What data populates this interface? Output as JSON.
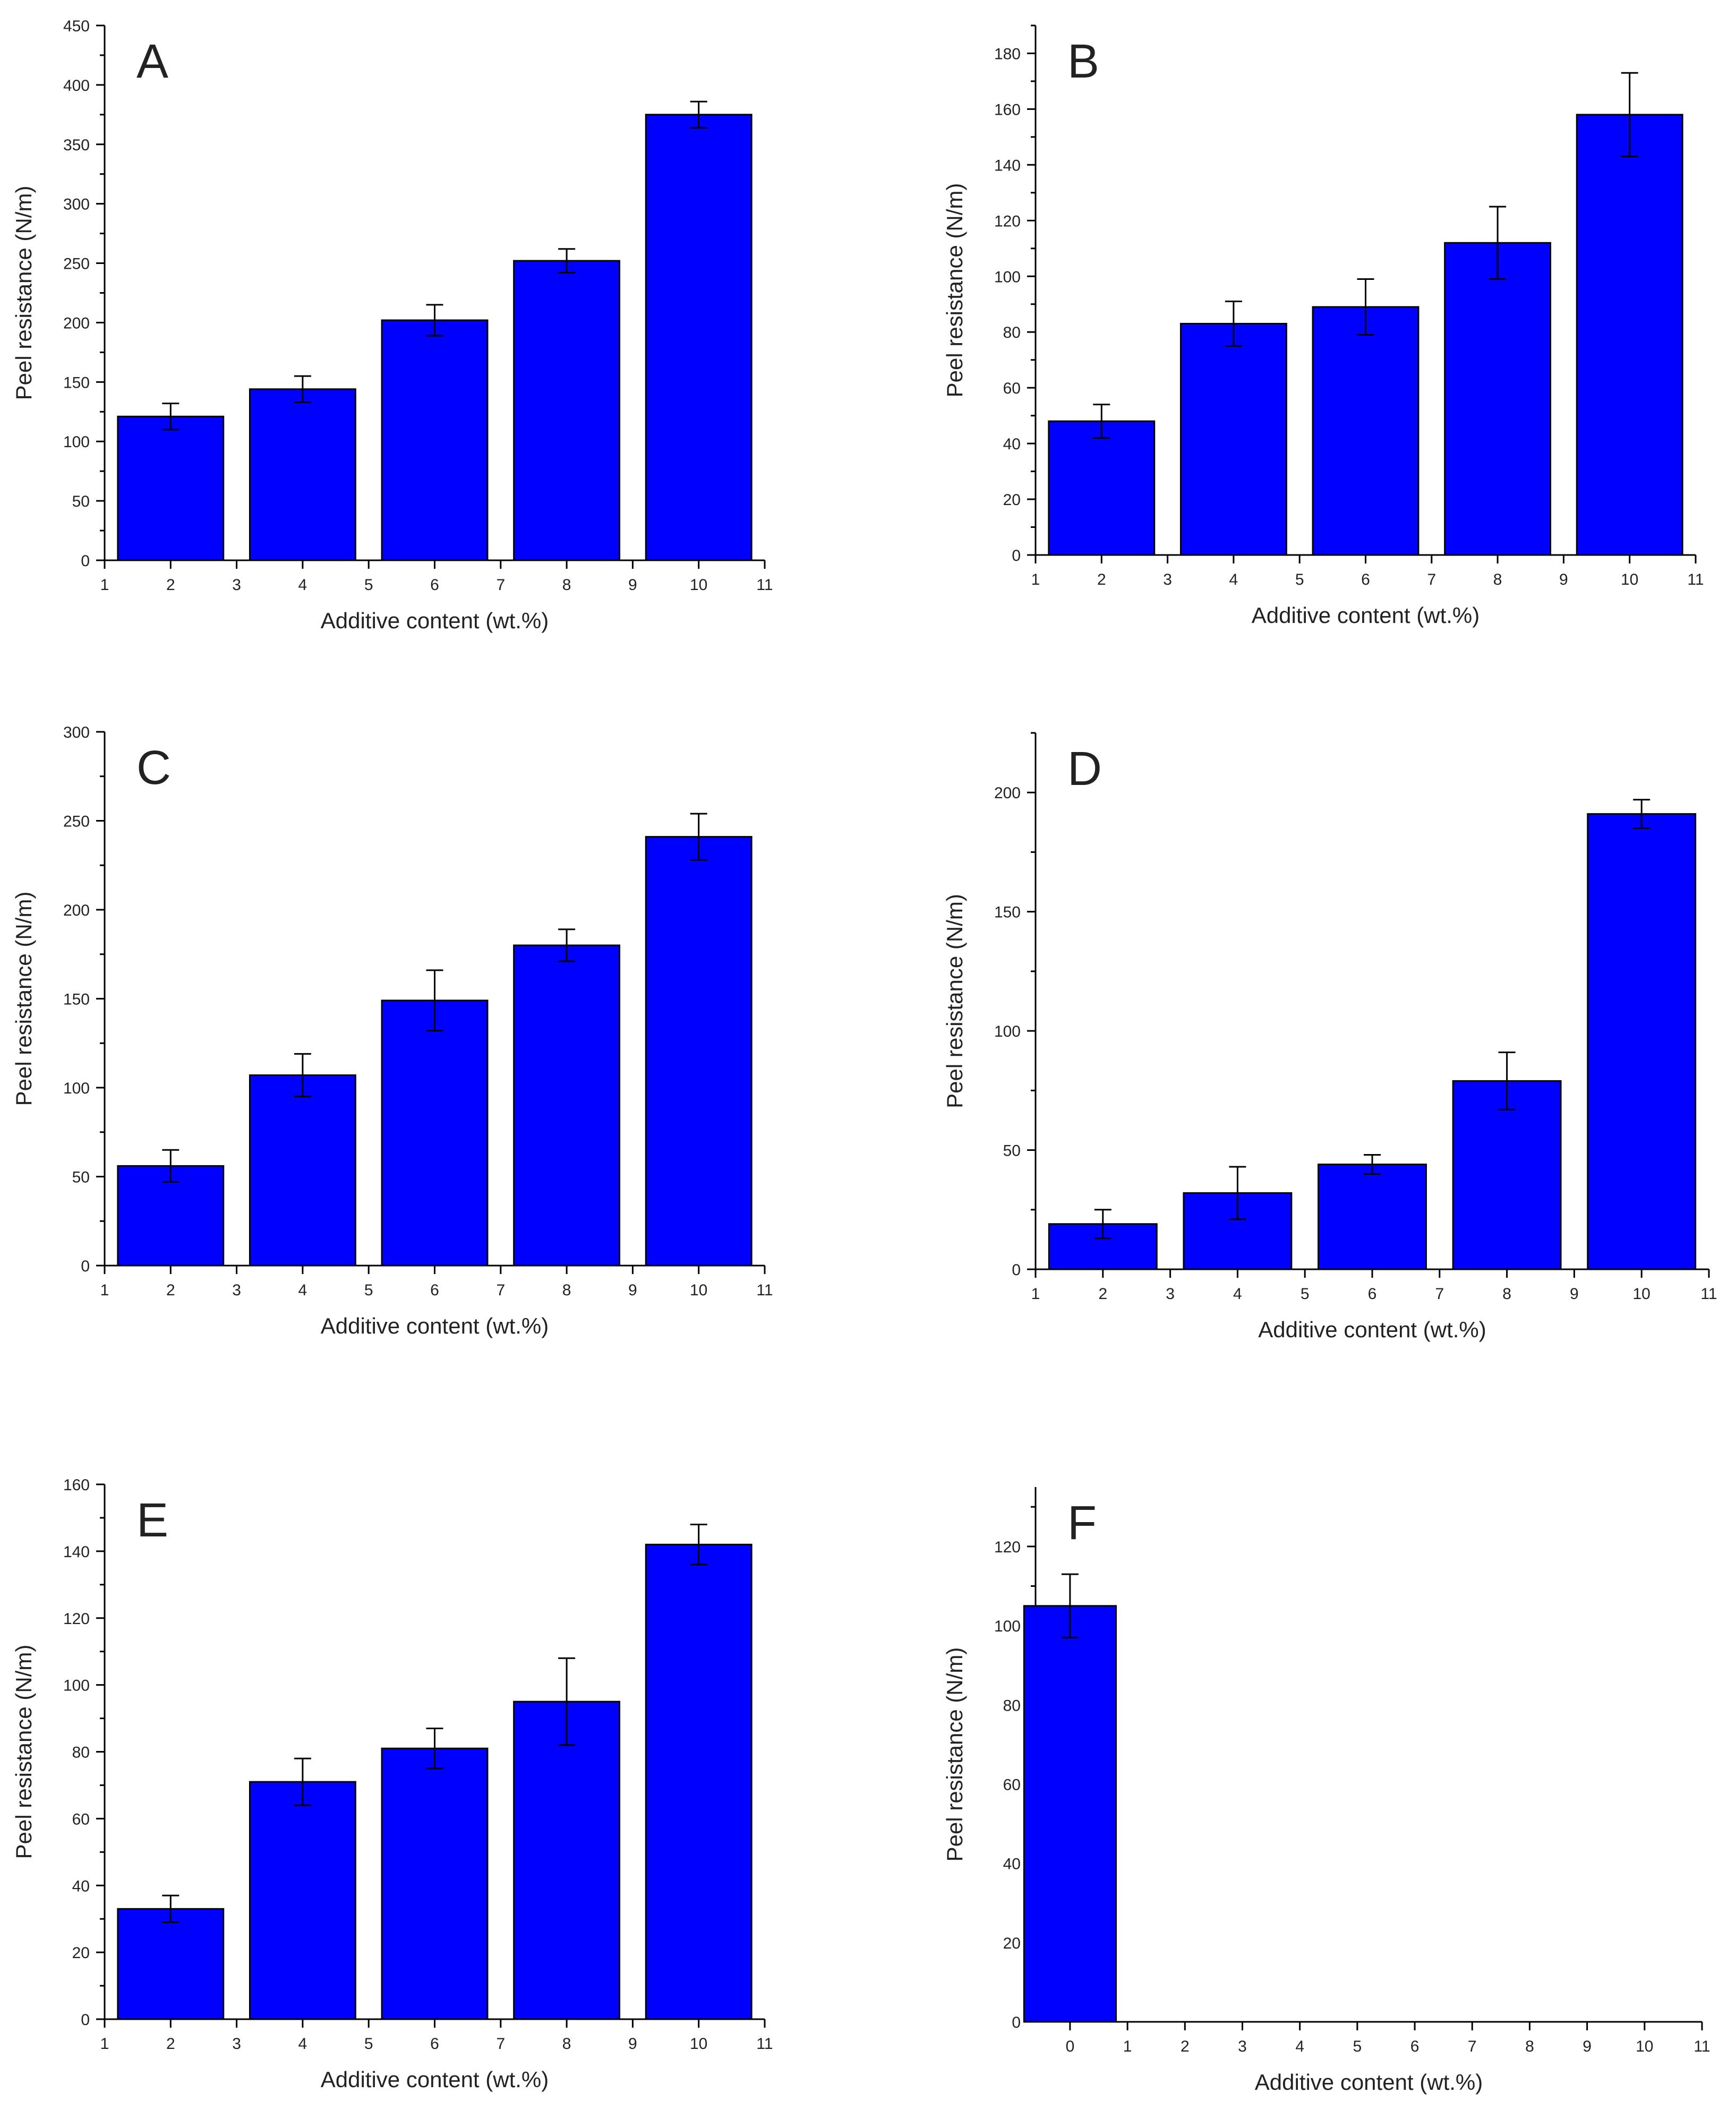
{
  "figure": {
    "colors": {
      "bar_fill": "#0000ff",
      "bar_edge": "#000000",
      "axis": "#000000",
      "text": "#222222"
    }
  },
  "chart_data": [
    {
      "panel": "A",
      "type": "bar",
      "title": "A",
      "xlabel": "Additive content (wt.%)",
      "ylabel": "Peel resistance (N/m)",
      "xlim": [
        1,
        11
      ],
      "ylim": [
        0,
        450
      ],
      "xticks": [
        1,
        2,
        3,
        4,
        5,
        6,
        7,
        8,
        9,
        10,
        11
      ],
      "yticks": [
        0,
        50,
        100,
        150,
        200,
        250,
        300,
        350,
        400,
        450
      ],
      "ytick_labels": [
        "0",
        "50",
        "100",
        "150",
        "200",
        "250",
        "300",
        "350",
        "400",
        "450"
      ],
      "minor_y": true,
      "x": [
        2,
        4,
        6,
        8,
        10
      ],
      "values": [
        121,
        144,
        202,
        252,
        375
      ],
      "errors": [
        11,
        11,
        13,
        10,
        11
      ]
    },
    {
      "panel": "B",
      "type": "bar",
      "title": "B",
      "xlabel": "Additive content (wt.%)",
      "ylabel": "Peel resistance (N/m)",
      "xlim": [
        1,
        11
      ],
      "ylim": [
        0,
        190
      ],
      "xticks": [
        1,
        2,
        3,
        4,
        5,
        6,
        7,
        8,
        9,
        10,
        11
      ],
      "yticks": [
        0,
        20,
        40,
        60,
        80,
        100,
        120,
        140,
        160,
        180
      ],
      "ytick_labels": [
        "0",
        "20",
        "40",
        "60",
        "80",
        "100",
        "120",
        "140",
        "160",
        "180"
      ],
      "minor_y": true,
      "x": [
        2,
        4,
        6,
        8,
        10
      ],
      "values": [
        48,
        83,
        89,
        112,
        158
      ],
      "errors": [
        6,
        8,
        10,
        13,
        15
      ]
    },
    {
      "panel": "C",
      "type": "bar",
      "title": "C",
      "xlabel": "Additive content (wt.%)",
      "ylabel": "Peel resistance (N/m)",
      "xlim": [
        1,
        11
      ],
      "ylim": [
        0,
        300
      ],
      "xticks": [
        1,
        2,
        3,
        4,
        5,
        6,
        7,
        8,
        9,
        10,
        11
      ],
      "yticks": [
        0,
        50,
        100,
        150,
        200,
        250,
        300
      ],
      "ytick_labels": [
        "0",
        "50",
        "100",
        "150",
        "200",
        "250",
        "300"
      ],
      "minor_y": true,
      "x": [
        2,
        4,
        6,
        8,
        10
      ],
      "values": [
        56,
        107,
        149,
        180,
        241
      ],
      "errors": [
        9,
        12,
        17,
        9,
        13
      ]
    },
    {
      "panel": "D",
      "type": "bar",
      "title": "D",
      "xlabel": "Additive content (wt.%)",
      "ylabel": "Peel resistance (N/m)",
      "xlim": [
        1,
        11
      ],
      "ylim": [
        0,
        225
      ],
      "xticks": [
        1,
        2,
        3,
        4,
        5,
        6,
        7,
        8,
        9,
        10,
        11
      ],
      "yticks": [
        0,
        50,
        100,
        150,
        200
      ],
      "ytick_labels": [
        "0",
        "50",
        "100",
        "150",
        "200"
      ],
      "minor_y": true,
      "x": [
        2,
        4,
        6,
        8,
        10
      ],
      "values": [
        19,
        32,
        44,
        79,
        191
      ],
      "errors": [
        6,
        11,
        4,
        12,
        6
      ]
    },
    {
      "panel": "E",
      "type": "bar",
      "title": "E",
      "xlabel": "Additive content (wt.%)",
      "ylabel": "Peel resistance (N/m)",
      "xlim": [
        1,
        11
      ],
      "ylim": [
        0,
        160
      ],
      "xticks": [
        1,
        2,
        3,
        4,
        5,
        6,
        7,
        8,
        9,
        10,
        11
      ],
      "yticks": [
        0,
        20,
        40,
        60,
        80,
        100,
        120,
        140,
        160
      ],
      "ytick_labels": [
        "0",
        "20",
        "40",
        "60",
        "80",
        "100",
        "120",
        "140",
        "160"
      ],
      "minor_y": true,
      "x": [
        2,
        4,
        6,
        8,
        10
      ],
      "values": [
        33,
        71,
        81,
        95,
        142
      ],
      "errors": [
        4,
        7,
        6,
        13,
        6
      ]
    },
    {
      "panel": "F",
      "type": "bar",
      "title": "F",
      "xlabel": "Additive content (wt.%)",
      "ylabel": "Peel resistance (N/m)",
      "xlim": [
        -0.6,
        11
      ],
      "ylim": [
        0,
        135
      ],
      "xticks": [
        0,
        1,
        2,
        3,
        4,
        5,
        6,
        7,
        8,
        9,
        10,
        11
      ],
      "yticks": [
        0,
        20,
        40,
        60,
        80,
        100,
        120
      ],
      "ytick_labels": [
        "0",
        "20",
        "40",
        "60",
        "80",
        "100",
        "120"
      ],
      "minor_y": true,
      "x": [
        0
      ],
      "values": [
        105
      ],
      "errors": [
        8
      ]
    }
  ]
}
